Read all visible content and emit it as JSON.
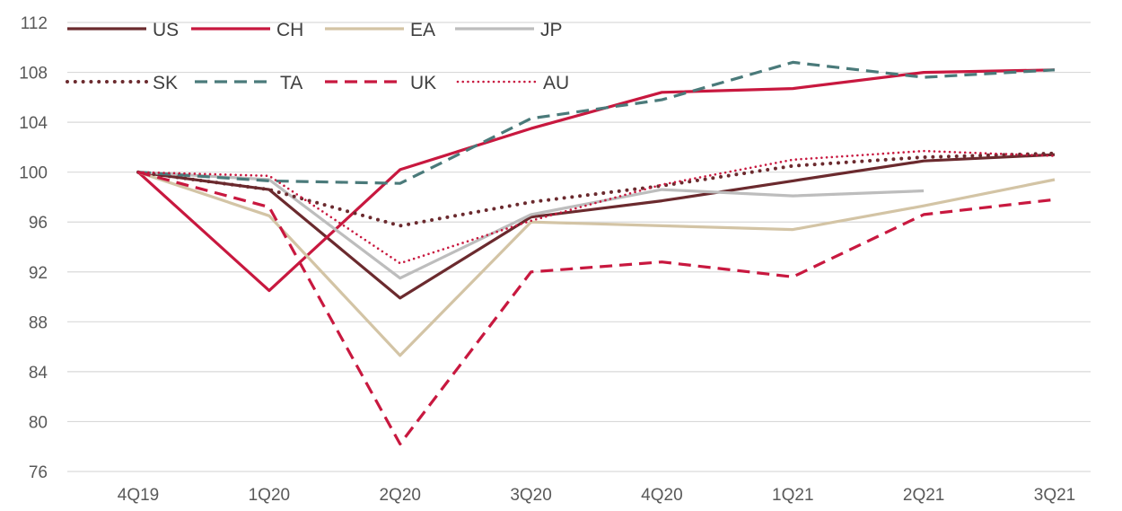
{
  "chart_data": {
    "type": "line",
    "title": "",
    "xlabel": "",
    "ylabel": "",
    "categories": [
      "4Q19",
      "1Q20",
      "2Q20",
      "3Q20",
      "4Q20",
      "1Q21",
      "2Q21",
      "3Q21"
    ],
    "ylim": [
      76,
      112
    ],
    "yticks": [
      76,
      80,
      84,
      88,
      92,
      96,
      100,
      104,
      108,
      112
    ],
    "grid": "horizontal",
    "legend_position": "top-left",
    "series": [
      {
        "name": "US",
        "color": "#6b2a2e",
        "style": "solid",
        "values": [
          100,
          98.6,
          89.9,
          96.4,
          97.7,
          99.3,
          100.9,
          101.4
        ]
      },
      {
        "name": "CH",
        "color": "#c8183f",
        "style": "solid",
        "values": [
          100,
          90.5,
          100.2,
          103.5,
          106.4,
          106.7,
          108.0,
          108.2
        ]
      },
      {
        "name": "EA",
        "color": "#d3c4a5",
        "style": "solid",
        "values": [
          100,
          96.5,
          85.3,
          96.0,
          95.7,
          95.4,
          97.3,
          99.4
        ]
      },
      {
        "name": "JP",
        "color": "#bdbdbd",
        "style": "solid",
        "values": [
          100,
          99.4,
          91.5,
          96.6,
          98.6,
          98.1,
          98.5,
          null
        ]
      },
      {
        "name": "SK",
        "color": "#6b2a2e",
        "style": "dotted",
        "values": [
          100,
          98.6,
          95.7,
          97.6,
          98.9,
          100.5,
          101.2,
          101.5
        ]
      },
      {
        "name": "TA",
        "color": "#4a7a7a",
        "style": "dashed",
        "values": [
          100,
          99.3,
          99.1,
          104.3,
          105.8,
          108.8,
          107.6,
          108.2
        ]
      },
      {
        "name": "UK",
        "color": "#c8183f",
        "style": "dashed",
        "values": [
          100,
          97.2,
          78.2,
          92.0,
          92.8,
          91.6,
          96.6,
          97.8
        ]
      },
      {
        "name": "AU",
        "color": "#c8183f",
        "style": "dotted",
        "values": [
          100,
          99.7,
          92.7,
          96.1,
          99.0,
          101.0,
          101.7,
          101.3
        ]
      }
    ]
  }
}
